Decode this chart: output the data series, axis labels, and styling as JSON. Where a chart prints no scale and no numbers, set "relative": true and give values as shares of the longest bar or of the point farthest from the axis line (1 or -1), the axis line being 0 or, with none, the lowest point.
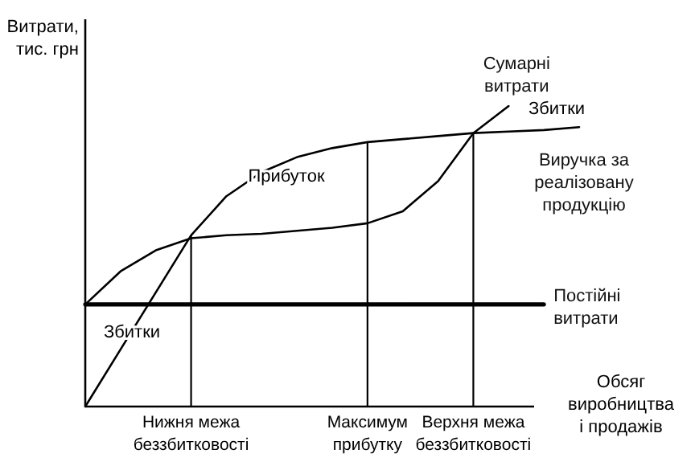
{
  "chart_data": {
    "type": "line",
    "relative": true,
    "xlabel": "Обсяг виробництва і продажів",
    "ylabel": "Витрати, тис. грн",
    "marker": "none",
    "line_style": "solid",
    "categories": [
      null,
      null,
      null,
      "Нижня межа беззбитковості",
      null,
      null,
      null,
      null,
      "Максимум прибутку",
      null,
      null,
      "Верхня межа беззбитковості",
      null,
      null,
      null
    ],
    "series": [
      {
        "name": "Виручка за реалізовану продукцію",
        "color": "#000000",
        "values": [
          0,
          0.19,
          0.38,
          0.57,
          0.7,
          0.78,
          0.83,
          0.86,
          0.88,
          0.89,
          0.9,
          0.91,
          0.915,
          0.92,
          0.93
        ]
      },
      {
        "name": "Сумарні витрати",
        "color": "#000000",
        "values": [
          0.34,
          0.45,
          0.52,
          0.56,
          0.57,
          0.575,
          0.585,
          0.595,
          0.61,
          0.65,
          0.75,
          0.91,
          1.0,
          null,
          null
        ]
      },
      {
        "name": "Постійні витрати",
        "color": "#000000",
        "values": [
          0.34,
          0.34,
          0.34,
          0.34,
          0.34,
          0.34,
          0.34,
          0.34,
          0.34,
          0.34,
          0.34,
          0.34,
          0.34,
          0.34,
          null
        ]
      }
    ],
    "ref_lines": [
      {
        "axis": "x",
        "value": "Нижня межа беззбитковості"
      },
      {
        "axis": "x",
        "value": "Максимум прибутку"
      },
      {
        "axis": "x",
        "value": "Верхня межа беззбитковості"
      }
    ],
    "annotations": [
      "Прибуток",
      "Збитки",
      "Збитки"
    ]
  }
}
